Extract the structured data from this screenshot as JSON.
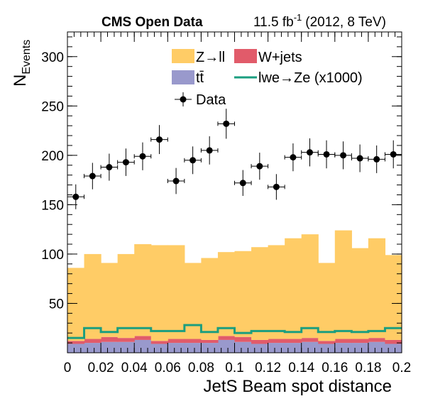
{
  "chart_data": {
    "type": "bar",
    "title": "CMS Open Data",
    "subtitle": "11.5 fb-1 (2012, 8 TeV)",
    "subtitle_parts": {
      "lumi": "11.5 fb",
      "exp": "-1",
      "rest": "(2012, 8 TeV)"
    },
    "xlabel": "JetS Beam spot distance",
    "ylabel": {
      "main": "N",
      "sub": "Events"
    },
    "xlim": [
      0,
      0.2
    ],
    "ylim": [
      0,
      325
    ],
    "x_ticks": [
      0,
      0.02,
      0.04,
      0.06,
      0.08,
      0.1,
      0.12,
      0.14,
      0.16,
      0.18,
      0.2
    ],
    "x_tick_labels": [
      "0",
      "0.02",
      "0.04",
      "0.06",
      "0.08",
      "0.1",
      "0.12",
      "0.14",
      "0.16",
      "0.18",
      "0.2"
    ],
    "y_ticks": [
      50,
      100,
      150,
      200,
      250,
      300
    ],
    "y_tick_labels": [
      "50",
      "100",
      "150",
      "200",
      "250",
      "300"
    ],
    "bin_edges": [
      0,
      0.01,
      0.02,
      0.03,
      0.04,
      0.05,
      0.06,
      0.07,
      0.08,
      0.09,
      0.1,
      0.11,
      0.12,
      0.13,
      0.14,
      0.15,
      0.16,
      0.17,
      0.18,
      0.19,
      0.2
    ],
    "stack_order": [
      "ttbar",
      "wjets",
      "zll"
    ],
    "series": [
      {
        "key": "ttbar",
        "name": "tt̄",
        "type": "stacked-hist",
        "color": "#9999cc",
        "values": [
          9,
          10,
          11,
          11,
          13,
          9,
          10,
          10,
          10,
          13,
          11,
          9,
          10,
          10,
          11,
          9,
          10,
          10,
          11,
          9
        ]
      },
      {
        "key": "wjets",
        "name": "W+jets",
        "type": "stacked-hist",
        "color": "#e15b6a",
        "values": [
          3,
          4,
          5,
          4,
          4,
          3,
          4,
          4,
          3,
          4,
          5,
          4,
          4,
          4,
          4,
          3,
          4,
          4,
          4,
          4
        ]
      },
      {
        "key": "zll",
        "name": "Z→ll",
        "type": "stacked-hist",
        "color": "#ffcc66",
        "values": [
          74,
          86,
          75,
          85,
          93,
          97,
          95,
          77,
          83,
          85,
          87,
          94,
          95,
          102,
          105,
          79,
          110,
          92,
          101,
          86
        ]
      },
      {
        "key": "signal",
        "name": "lwe→Ze (x1000)",
        "type": "step",
        "color": "#1b9e7f",
        "values": [
          15,
          25,
          21,
          25,
          25,
          22,
          22,
          28,
          21,
          25,
          20,
          22,
          22,
          21,
          25,
          21,
          22,
          21,
          22,
          25
        ]
      },
      {
        "key": "data",
        "name": "Data",
        "type": "points",
        "color": "#000000",
        "values": [
          158,
          179,
          188,
          193,
          199,
          216,
          174,
          195,
          205,
          232,
          172,
          189,
          168,
          198,
          203,
          201,
          200,
          197,
          196,
          201
        ],
        "errors": [
          12.6,
          13.4,
          13.7,
          13.9,
          14.1,
          14.7,
          13.2,
          14.0,
          14.3,
          15.2,
          13.1,
          13.7,
          13.0,
          14.1,
          14.2,
          14.2,
          14.1,
          14.0,
          14.0,
          14.2
        ]
      }
    ],
    "legend": {
      "placement": "top-center",
      "entries": [
        {
          "key": "zll",
          "label": "Z→ll"
        },
        {
          "key": "wjets",
          "label": "W+jets"
        },
        {
          "key": "ttbar",
          "label": "tt̄"
        },
        {
          "key": "signal",
          "label": "lwe→Ze (x1000)"
        },
        {
          "key": "data",
          "label": "Data"
        }
      ]
    },
    "grid": false
  }
}
